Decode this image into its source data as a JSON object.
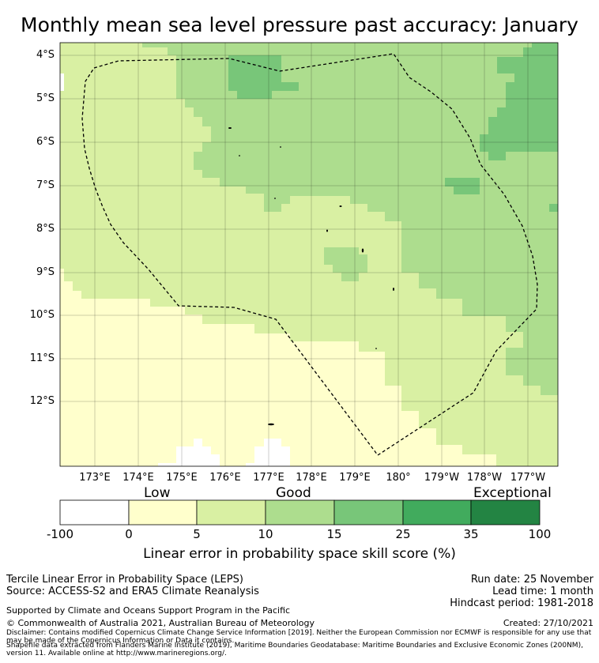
{
  "title": "Monthly mean sea level pressure past accuracy: January",
  "map": {
    "lat_labels": [
      "4°S",
      "5°S",
      "6°S",
      "7°S",
      "8°S",
      "9°S",
      "10°S",
      "11°S",
      "12°S"
    ],
    "lon_labels": [
      "173°E",
      "174°E",
      "175°E",
      "176°E",
      "177°E",
      "178°E",
      "179°E",
      "180°",
      "179°W",
      "178°W",
      "177°W"
    ],
    "colors": {
      "low": "#ffffcc",
      "good_low": "#d9f0a3",
      "good": "#addd8e",
      "good_high": "#78c679",
      "land": "#ffffff",
      "border": "#000000"
    }
  },
  "colorbar": {
    "categories": [
      "Low",
      "Good",
      "Exceptional"
    ],
    "ticks": [
      "-100",
      "0",
      "5",
      "10",
      "15",
      "25",
      "35",
      "100"
    ],
    "colors": [
      "#ffffff",
      "#ffffcc",
      "#d9f0a3",
      "#addd8e",
      "#78c679",
      "#41ab5d",
      "#238443"
    ],
    "label": "Linear error in probability space skill score (%)"
  },
  "footer": {
    "left1": "Tercile Linear Error in Probability Space (LEPS)",
    "left2": "Source: ACCESS-S2 and ERA5 Climate Reanalysis",
    "right1": "Run date: 25 November",
    "right2": "Lead time: 1 month",
    "right3": "Hindcast period: 1981-2018",
    "supported": "Supported by Climate and Oceans Support Program in the Pacific",
    "copyright": "© Commonwealth of Australia 2021, Australian Bureau of Meteorology",
    "created": "Created: 27/10/2021",
    "disclaimer": "Disclaimer: Contains modified Copernicus Climate Change Service Information [2019]. Neither the European Commission nor ECMWF is responsible for any use that may be made of the Copernicus Information or Data it contains.",
    "shapefile": "Shapefile data extracted from Flanders Marine Institute (2019), Maritime Boundaries Geodatabase: Maritime Boundaries and Exclusive Economic Zones (200NM), version 11. Available online at http://www.marineregions.org/."
  }
}
